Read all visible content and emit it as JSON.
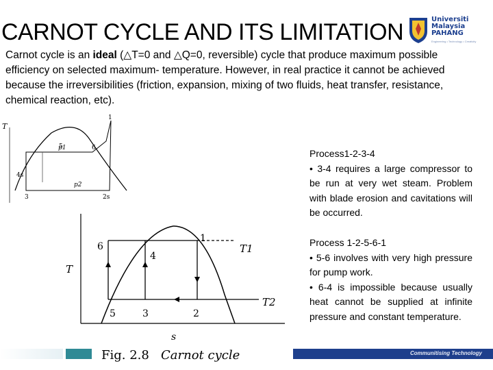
{
  "slide": {
    "title": "CARNOT CYCLE AND ITS LIMITATION",
    "logo": {
      "line1": "Universiti",
      "line2": "Malaysia",
      "line3": "PAHANG",
      "tagline": "Engineering • Technology • Creativity"
    },
    "intro": {
      "before": "Carnot cycle is an ",
      "bold": "ideal",
      "after": " (△T=0 and △Q=0, reversible) cycle that produce maximum possible efficiency on selected maximum- temperature. However, in real practice it cannot be achieved because the irreversibilities (friction, expansion, mixing of two fluids, heat transfer, resistance, chemical reaction, etc)."
    },
    "process1": {
      "heading": "Process1-2-3-4",
      "bullet1": "• 3-4 requires a large compressor to be run at very wet steam. Problem with blade erosion and cavitations will be occurred."
    },
    "process2": {
      "heading": "Process 1-2-5-6-1",
      "bullet1": "• 5-6 involves with very high pressure for pump work.",
      "bullet2": "• 6-4 is impossible because usually heat cannot be supplied at infinite pressure and constant temperature."
    },
    "figure1": {
      "t_axis": "T",
      "p1": "p1",
      "p2": "p2",
      "labels": {
        "n1": "1",
        "n5": "5",
        "n6": "6",
        "n4s": "4s",
        "n3": "3",
        "n2s": "2s"
      }
    },
    "figure2": {
      "t_axis": "T",
      "s_axis": "s",
      "t1": "T1",
      "t2": "T2",
      "labels": {
        "n1": "1",
        "n2": "2",
        "n3": "3",
        "n4": "4",
        "n5": "5",
        "n6": "6"
      }
    },
    "caption": {
      "fig": "Fig. 2.8",
      "name": "Carnot cycle"
    },
    "footer": {
      "slogan": "Communitising Technology"
    },
    "colors": {
      "accent_blue": "#1e3f8c",
      "accent_teal": "#2f8a95"
    }
  }
}
